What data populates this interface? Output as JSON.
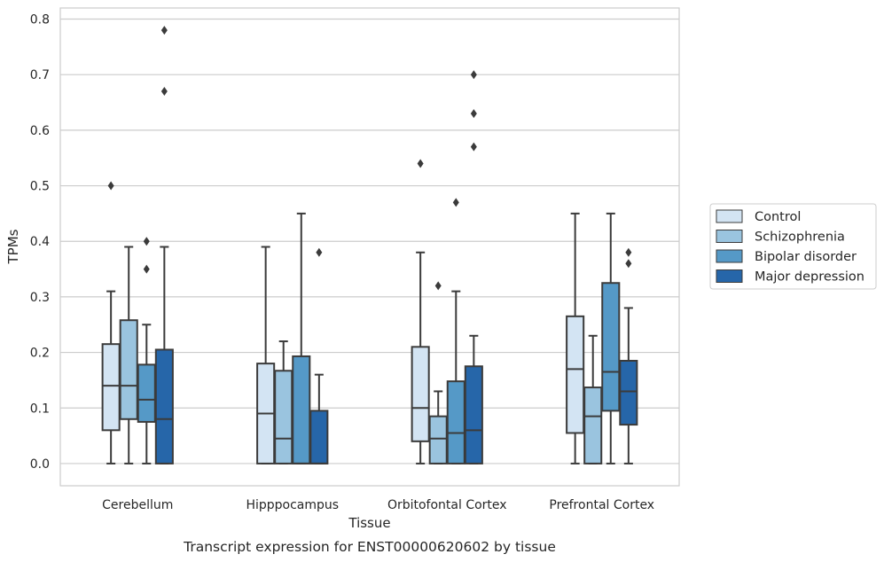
{
  "chart_data": {
    "type": "boxplot",
    "caption": "Transcript expression for ENST00000620602 by tissue",
    "xlabel": "Tissue",
    "ylabel": "TPMs",
    "ylim": [
      -0.04,
      0.82
    ],
    "yticks": [
      0.0,
      0.1,
      0.2,
      0.3,
      0.4,
      0.5,
      0.6,
      0.7,
      0.8
    ],
    "ytick_labels": [
      "0.0",
      "0.1",
      "0.2",
      "0.3",
      "0.4",
      "0.5",
      "0.6",
      "0.7",
      "0.8"
    ],
    "grid": "horizontal",
    "legend_position": "right",
    "categories": [
      "Cerebellum",
      "Hipppocampus",
      "Orbitofontal Cortex",
      "Prefrontal Cortex"
    ],
    "series": [
      {
        "name": "Control",
        "color": "#d3e4f3",
        "boxes": [
          {
            "whislo": 0.0,
            "q1": 0.06,
            "med": 0.14,
            "q3": 0.215,
            "whishi": 0.31,
            "fliers": [
              0.5
            ]
          },
          {
            "whislo": 0.0,
            "q1": 0.0,
            "med": 0.09,
            "q3": 0.18,
            "whishi": 0.39,
            "fliers": []
          },
          {
            "whislo": 0.0,
            "q1": 0.04,
            "med": 0.1,
            "q3": 0.21,
            "whishi": 0.38,
            "fliers": [
              0.54
            ]
          },
          {
            "whislo": 0.0,
            "q1": 0.055,
            "med": 0.17,
            "q3": 0.265,
            "whishi": 0.45,
            "fliers": []
          }
        ]
      },
      {
        "name": "Schizophrenia",
        "color": "#9ac4df",
        "boxes": [
          {
            "whislo": 0.0,
            "q1": 0.08,
            "med": 0.14,
            "q3": 0.258,
            "whishi": 0.39,
            "fliers": []
          },
          {
            "whislo": 0.0,
            "q1": 0.0,
            "med": 0.045,
            "q3": 0.167,
            "whishi": 0.22,
            "fliers": []
          },
          {
            "whislo": 0.0,
            "q1": 0.0,
            "med": 0.045,
            "q3": 0.085,
            "whishi": 0.13,
            "fliers": [
              0.32
            ]
          },
          {
            "whislo": 0.0,
            "q1": 0.0,
            "med": 0.085,
            "q3": 0.137,
            "whishi": 0.23,
            "fliers": []
          }
        ]
      },
      {
        "name": "Bipolar disorder",
        "color": "#5599c7",
        "boxes": [
          {
            "whislo": 0.0,
            "q1": 0.075,
            "med": 0.115,
            "q3": 0.178,
            "whishi": 0.25,
            "fliers": [
              0.35,
              0.4
            ]
          },
          {
            "whislo": 0.0,
            "q1": 0.0,
            "med": 0.0,
            "q3": 0.193,
            "whishi": 0.45,
            "fliers": []
          },
          {
            "whislo": 0.0,
            "q1": 0.0,
            "med": 0.055,
            "q3": 0.148,
            "whishi": 0.31,
            "fliers": [
              0.47
            ]
          },
          {
            "whislo": 0.0,
            "q1": 0.095,
            "med": 0.165,
            "q3": 0.325,
            "whishi": 0.45,
            "fliers": []
          }
        ]
      },
      {
        "name": "Major depression",
        "color": "#2666a9",
        "boxes": [
          {
            "whislo": 0.0,
            "q1": 0.0,
            "med": 0.08,
            "q3": 0.205,
            "whishi": 0.39,
            "fliers": [
              0.67,
              0.78
            ]
          },
          {
            "whislo": 0.0,
            "q1": 0.0,
            "med": 0.0,
            "q3": 0.095,
            "whishi": 0.16,
            "fliers": [
              0.38
            ]
          },
          {
            "whislo": 0.0,
            "q1": 0.0,
            "med": 0.06,
            "q3": 0.175,
            "whishi": 0.23,
            "fliers": [
              0.57,
              0.63,
              0.7
            ]
          },
          {
            "whislo": 0.0,
            "q1": 0.07,
            "med": 0.13,
            "q3": 0.185,
            "whishi": 0.28,
            "fliers": [
              0.36,
              0.38
            ]
          }
        ]
      }
    ]
  }
}
